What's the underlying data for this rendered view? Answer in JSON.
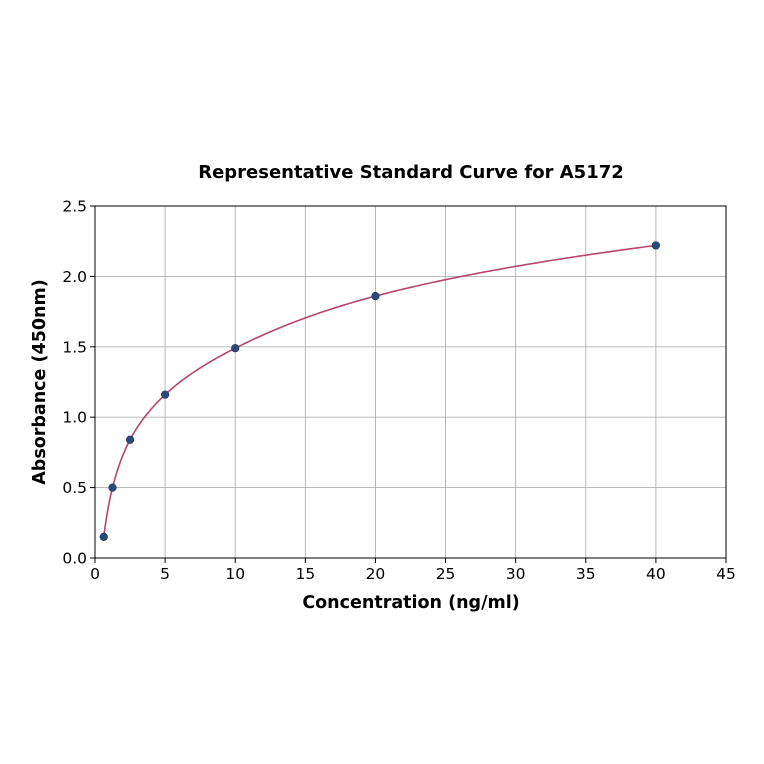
{
  "chart_data": {
    "type": "scatter",
    "title": "Representative Standard Curve for A5172",
    "xlabel": "Concentration (ng/ml)",
    "ylabel": "Absorbance (450nm)",
    "xlim": [
      0,
      45
    ],
    "ylim": [
      0,
      2.5
    ],
    "xticks": [
      0,
      5,
      10,
      15,
      20,
      25,
      30,
      35,
      40,
      45
    ],
    "yticks": [
      0.0,
      0.5,
      1.0,
      1.5,
      2.0,
      2.5
    ],
    "xtick_labels": [
      "0",
      "5",
      "10",
      "15",
      "20",
      "25",
      "30",
      "35",
      "40",
      "45"
    ],
    "ytick_labels": [
      "0.0",
      "0.5",
      "1.0",
      "1.5",
      "2.0",
      "2.5"
    ],
    "grid": true,
    "series": [
      {
        "x": [
          0.625,
          1.25,
          2.5,
          5,
          10,
          20,
          40
        ],
        "y": [
          0.15,
          0.5,
          0.84,
          1.16,
          1.49,
          1.86,
          2.22
        ],
        "color": "#2a4a7a",
        "marker": "circle"
      }
    ],
    "fit_curve": {
      "color": "#b5476a",
      "x_range": [
        0.625,
        40
      ]
    }
  }
}
